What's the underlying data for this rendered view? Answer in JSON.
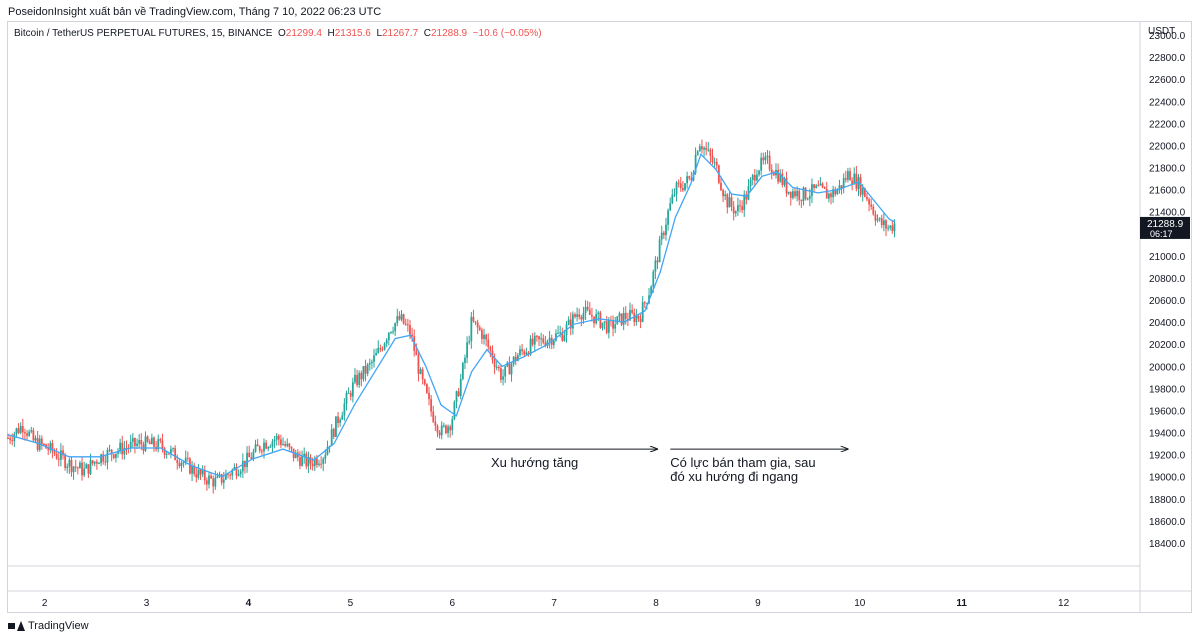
{
  "header": {
    "publisher": "PoseidonInsight xuất bản về TradingView.com, Tháng 7 10, 2022 06:23 UTC"
  },
  "legend": {
    "symbol": "Bitcoin / TetherUS PERPETUAL FUTURES, 15, BINANCE",
    "o_label": "O",
    "o_value": "21299.4",
    "h_label": "H",
    "h_value": "21315.6",
    "l_label": "L",
    "l_value": "21267.7",
    "c_label": "C",
    "c_value": "21288.9",
    "change": "−10.6 (−0.05%)"
  },
  "footer": {
    "brand": "TradingView"
  },
  "chart_data": {
    "type": "candlestick",
    "currency": "USDT",
    "last_price": "21288.9",
    "countdown": "06:17",
    "ylim": [
      18200,
      23000
    ],
    "yticks": [
      "23000.0",
      "22800.0",
      "22600.0",
      "22400.0",
      "22200.0",
      "22000.0",
      "21800.0",
      "21600.0",
      "21400.0",
      "21200.0",
      "21000.0",
      "20800.0",
      "20600.0",
      "20400.0",
      "20200.0",
      "20000.0",
      "19800.0",
      "19600.0",
      "19400.0",
      "19200.0",
      "19000.0",
      "18800.0",
      "18600.0",
      "18400.0"
    ],
    "xticks": [
      {
        "label": "2",
        "t": 1.86,
        "bold": false
      },
      {
        "label": "3",
        "t": 2.86,
        "bold": false
      },
      {
        "label": "4",
        "t": 3.86,
        "bold": true
      },
      {
        "label": "5",
        "t": 4.86,
        "bold": false
      },
      {
        "label": "6",
        "t": 5.86,
        "bold": false
      },
      {
        "label": "7",
        "t": 6.86,
        "bold": false
      },
      {
        "label": "8",
        "t": 7.86,
        "bold": false
      },
      {
        "label": "9",
        "t": 8.86,
        "bold": false
      },
      {
        "label": "10",
        "t": 9.86,
        "bold": false
      },
      {
        "label": "11",
        "t": 10.86,
        "bold": true
      },
      {
        "label": "12",
        "t": 11.86,
        "bold": false
      }
    ],
    "xlim": [
      1.5,
      12.6
    ],
    "price_path": [
      [
        1.5,
        19350
      ],
      [
        1.65,
        19470
      ],
      [
        1.75,
        19320
      ],
      [
        1.9,
        19250
      ],
      [
        2.1,
        19120
      ],
      [
        2.25,
        19050
      ],
      [
        2.4,
        19180
      ],
      [
        2.6,
        19250
      ],
      [
        2.8,
        19300
      ],
      [
        3.0,
        19280
      ],
      [
        3.2,
        19150
      ],
      [
        3.4,
        19000
      ],
      [
        3.55,
        18950
      ],
      [
        3.7,
        19050
      ],
      [
        3.85,
        19150
      ],
      [
        4.0,
        19300
      ],
      [
        4.15,
        19350
      ],
      [
        4.3,
        19200
      ],
      [
        4.45,
        19120
      ],
      [
        4.6,
        19200
      ],
      [
        4.75,
        19550
      ],
      [
        4.9,
        19850
      ],
      [
        5.05,
        20000
      ],
      [
        5.15,
        20150
      ],
      [
        5.25,
        20350
      ],
      [
        5.35,
        20430
      ],
      [
        5.45,
        20300
      ],
      [
        5.55,
        19900
      ],
      [
        5.65,
        19600
      ],
      [
        5.75,
        19400
      ],
      [
        5.85,
        19500
      ],
      [
        5.95,
        19900
      ],
      [
        6.05,
        20400
      ],
      [
        6.15,
        20300
      ],
      [
        6.25,
        20100
      ],
      [
        6.35,
        19900
      ],
      [
        6.5,
        20100
      ],
      [
        6.65,
        20200
      ],
      [
        6.8,
        20250
      ],
      [
        6.95,
        20300
      ],
      [
        7.1,
        20500
      ],
      [
        7.25,
        20450
      ],
      [
        7.4,
        20350
      ],
      [
        7.55,
        20450
      ],
      [
        7.7,
        20450
      ],
      [
        7.8,
        20700
      ],
      [
        7.9,
        21100
      ],
      [
        7.98,
        21400
      ],
      [
        8.05,
        21600
      ],
      [
        8.13,
        21650
      ],
      [
        8.2,
        21700
      ],
      [
        8.28,
        22050
      ],
      [
        8.35,
        21950
      ],
      [
        8.45,
        21800
      ],
      [
        8.55,
        21500
      ],
      [
        8.65,
        21400
      ],
      [
        8.75,
        21550
      ],
      [
        8.85,
        21800
      ],
      [
        8.95,
        21850
      ],
      [
        9.05,
        21750
      ],
      [
        9.15,
        21600
      ],
      [
        9.3,
        21550
      ],
      [
        9.45,
        21600
      ],
      [
        9.55,
        21550
      ],
      [
        9.65,
        21600
      ],
      [
        9.75,
        21750
      ],
      [
        9.85,
        21650
      ],
      [
        9.95,
        21500
      ],
      [
        10.05,
        21300
      ],
      [
        10.15,
        21250
      ],
      [
        10.2,
        21290
      ]
    ],
    "ma_path": [
      [
        1.5,
        19380
      ],
      [
        1.8,
        19300
      ],
      [
        2.1,
        19180
      ],
      [
        2.4,
        19180
      ],
      [
        2.7,
        19260
      ],
      [
        3.0,
        19260
      ],
      [
        3.3,
        19100
      ],
      [
        3.6,
        19000
      ],
      [
        3.9,
        19160
      ],
      [
        4.2,
        19250
      ],
      [
        4.5,
        19150
      ],
      [
        4.7,
        19300
      ],
      [
        4.9,
        19650
      ],
      [
        5.1,
        19950
      ],
      [
        5.3,
        20250
      ],
      [
        5.45,
        20280
      ],
      [
        5.6,
        20000
      ],
      [
        5.75,
        19650
      ],
      [
        5.9,
        19550
      ],
      [
        6.05,
        19950
      ],
      [
        6.2,
        20150
      ],
      [
        6.35,
        20000
      ],
      [
        6.55,
        20080
      ],
      [
        6.8,
        20200
      ],
      [
        7.05,
        20380
      ],
      [
        7.3,
        20430
      ],
      [
        7.55,
        20400
      ],
      [
        7.75,
        20500
      ],
      [
        7.9,
        20850
      ],
      [
        8.05,
        21350
      ],
      [
        8.2,
        21650
      ],
      [
        8.3,
        21920
      ],
      [
        8.45,
        21780
      ],
      [
        8.6,
        21560
      ],
      [
        8.75,
        21540
      ],
      [
        8.9,
        21720
      ],
      [
        9.05,
        21760
      ],
      [
        9.2,
        21620
      ],
      [
        9.45,
        21570
      ],
      [
        9.65,
        21600
      ],
      [
        9.85,
        21670
      ],
      [
        10.0,
        21500
      ],
      [
        10.15,
        21330
      ],
      [
        10.2,
        21310
      ]
    ],
    "annotations": [
      {
        "text": "Xu hướng tăng",
        "x1": 5.7,
        "x2": 7.88,
        "y": 19250
      },
      {
        "text": "Có lực bán tham gia, sau",
        "text2": "đó xu hướng đi ngang",
        "x1": 8.0,
        "x2": 9.75,
        "y": 19250
      }
    ]
  }
}
